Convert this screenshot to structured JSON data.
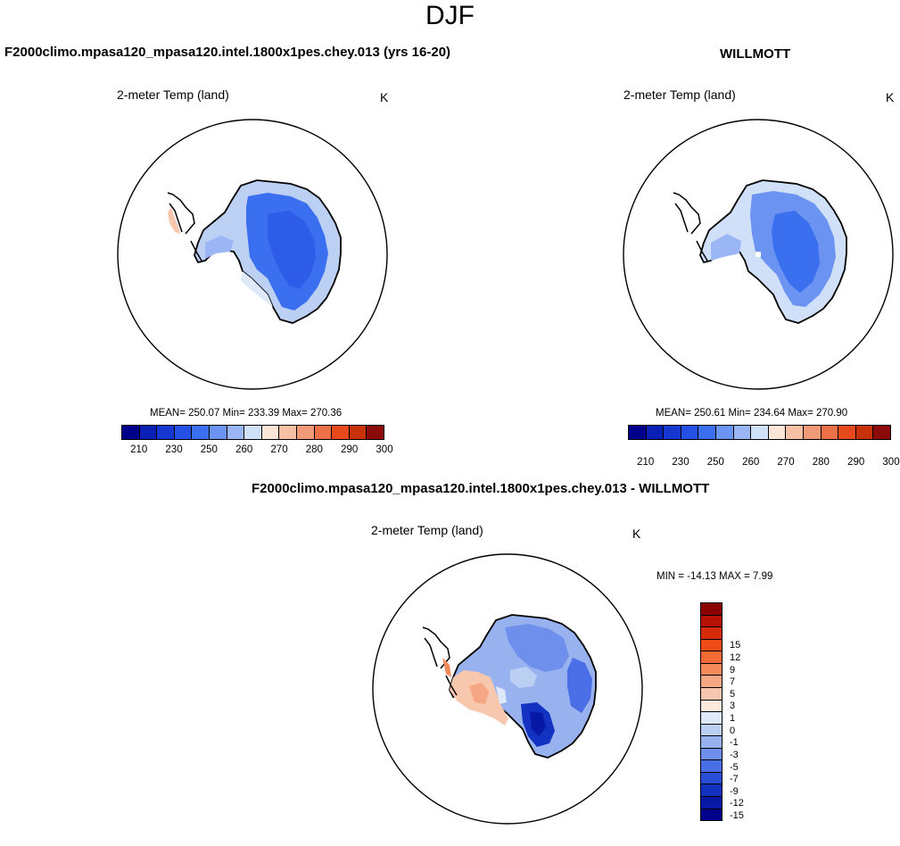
{
  "title": "DJF",
  "panels": {
    "model": {
      "case_title": "F2000climo.mpasa120_mpasa120.intel.1800x1pes.chey.013 (yrs 16-20)",
      "variable": "2-meter Temp (land)",
      "units": "K",
      "stats": "MEAN= 250.07  Min= 233.39  Max= 270.36"
    },
    "obs": {
      "case_title": "WILLMOTT",
      "variable": "2-meter Temp (land)",
      "units": "K",
      "stats": "MEAN= 250.61  Min= 234.64  Max= 270.90"
    },
    "diff": {
      "case_title": "F2000climo.mpasa120_mpasa120.intel.1800x1pes.chey.013 - WILLMOTT",
      "variable": "2-meter Temp (land)",
      "units": "K",
      "stats": "MIN = -14.13 MAX =   7.99"
    }
  },
  "colorbars": {
    "absolute": {
      "colors": [
        "#00008b",
        "#0a1fb4",
        "#1637d0",
        "#2450e6",
        "#3a6ff0",
        "#6a93f2",
        "#9bb6f4",
        "#cfe0f8",
        "#fbe6d8",
        "#f6c0a4",
        "#f19a78",
        "#ec7048",
        "#e64a1c",
        "#c8320a",
        "#8b0a0a"
      ],
      "labels": [
        "210",
        "230",
        "250",
        "260",
        "270",
        "280",
        "290",
        "300"
      ]
    },
    "difference": {
      "colors": [
        "#8b0000",
        "#b51205",
        "#d42a0a",
        "#ee4b16",
        "#f26b35",
        "#f4895a",
        "#f5a783",
        "#f8c8ae",
        "#fcebdc",
        "#dde8f8",
        "#bcd0f4",
        "#98b2f0",
        "#6f8fec",
        "#4a6ee6",
        "#2b4ed9",
        "#1432c2",
        "#0818a6",
        "#00008b"
      ],
      "labels": [
        "15",
        "12",
        "9",
        "7",
        "5",
        "3",
        "1",
        "0",
        "-1",
        "-3",
        "-5",
        "-7",
        "-9",
        "-12",
        "-15"
      ]
    }
  }
}
